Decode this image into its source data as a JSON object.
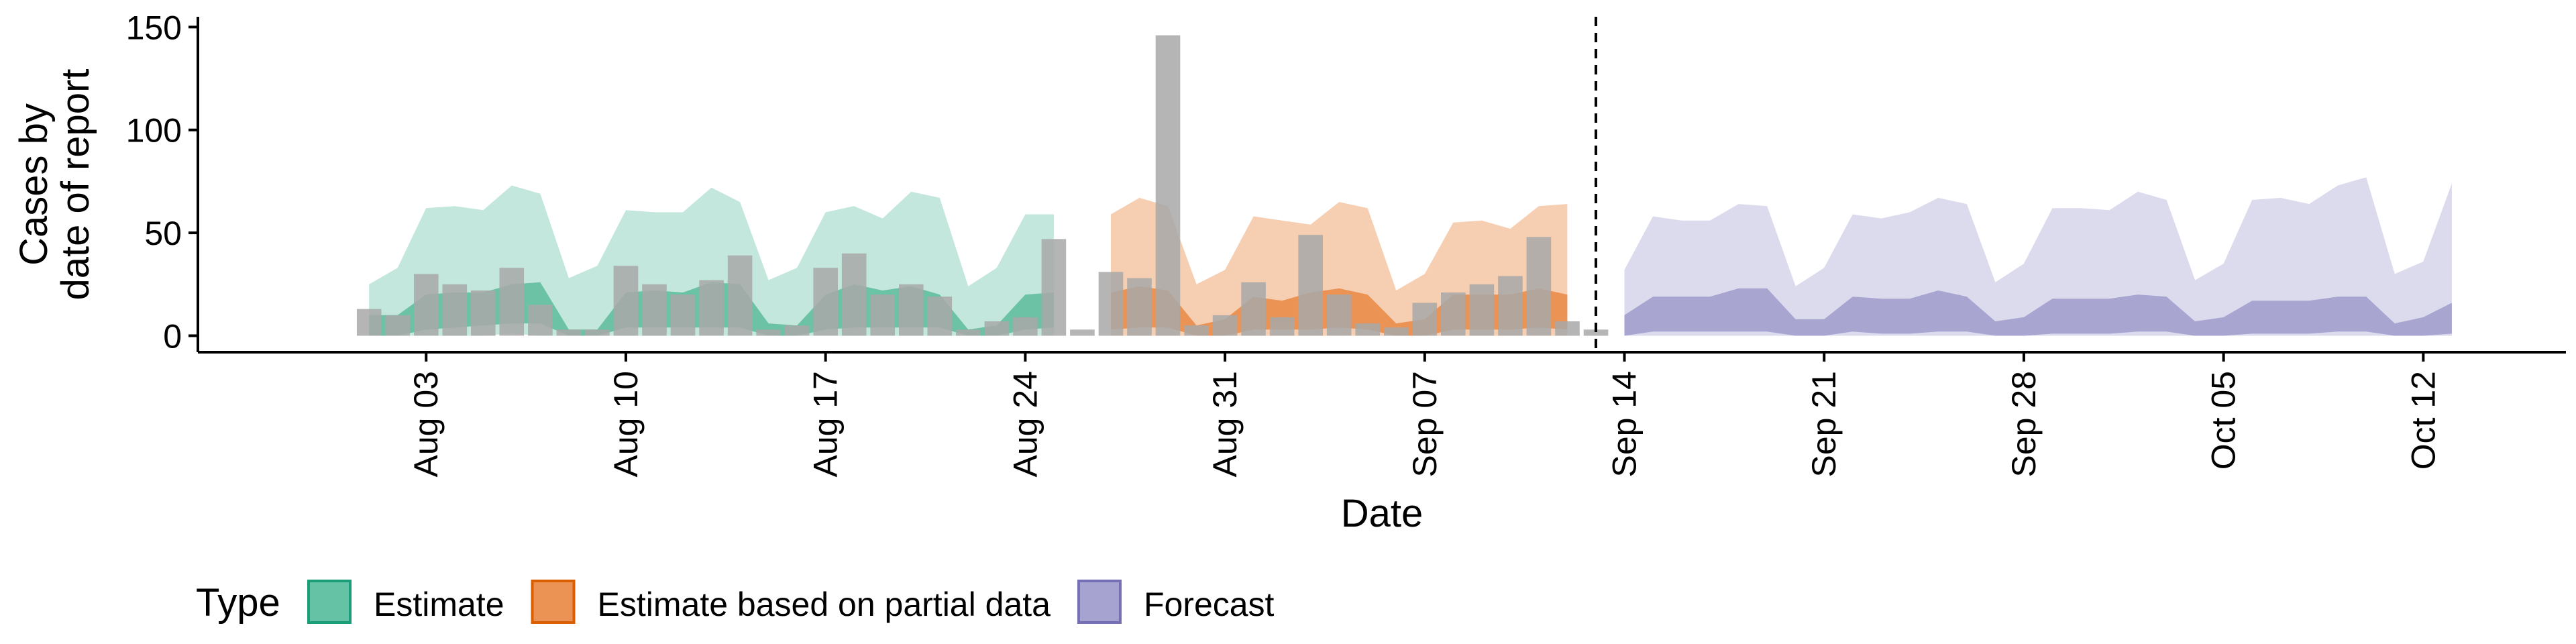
{
  "chart_data": {
    "type": "area",
    "title": "",
    "xlabel": "Date",
    "ylabel": [
      "Cases by",
      "date of report"
    ],
    "ylim": [
      -8,
      155
    ],
    "yticks": [
      0,
      50,
      100,
      150
    ],
    "xlim": [
      "2020-07-26",
      "2020-10-17"
    ],
    "xticks": [
      {
        "date": "2020-08-03",
        "label": "Aug 03"
      },
      {
        "date": "2020-08-10",
        "label": "Aug 10"
      },
      {
        "date": "2020-08-17",
        "label": "Aug 17"
      },
      {
        "date": "2020-08-24",
        "label": "Aug 24"
      },
      {
        "date": "2020-08-31",
        "label": "Aug 31"
      },
      {
        "date": "2020-09-07",
        "label": "Sep 07"
      },
      {
        "date": "2020-09-14",
        "label": "Sep 14"
      },
      {
        "date": "2020-09-21",
        "label": "Sep 21"
      },
      {
        "date": "2020-09-28",
        "label": "Sep 28"
      },
      {
        "date": "2020-10-05",
        "label": "Oct 05"
      },
      {
        "date": "2020-10-12",
        "label": "Oct 12"
      }
    ],
    "forecast_start_line": "2020-09-13",
    "grid": false,
    "legend": {
      "title": "Type",
      "position": "bottom-left",
      "entries": [
        {
          "name": "Estimate",
          "fill": "#66c2a5",
          "stroke": "#1b9e77"
        },
        {
          "name": "Estimate based on partial data",
          "fill": "#eb9355",
          "stroke": "#d95f02"
        },
        {
          "name": "Forecast",
          "fill": "#a6a3d0",
          "stroke": "#7570b3"
        }
      ]
    },
    "colors": {
      "Estimate": {
        "outer": "#c3e7dc",
        "inner": "#6cc2a4"
      },
      "Estimate based on partial data": {
        "outer": "#f6ceb2",
        "inner": "#eb9355"
      },
      "Forecast": {
        "outer": "#dcdbed",
        "inner": "#a8a5d1"
      },
      "reported_bars": "#a8a8a8"
    },
    "reported_cases": {
      "start": "2020-08-01",
      "values": [
        13,
        10,
        30,
        25,
        22,
        33,
        15,
        3,
        3,
        34,
        25,
        20,
        27,
        39,
        3,
        5,
        33,
        40,
        20,
        25,
        19,
        3,
        7,
        9,
        47,
        3,
        31,
        28,
        146,
        5,
        10,
        26,
        9,
        49,
        20,
        6,
        4,
        16,
        21,
        25,
        29,
        48,
        7,
        3
      ]
    },
    "series": [
      {
        "name": "Estimate",
        "start": "2020-08-01",
        "upper": [
          25,
          33,
          62,
          63,
          61,
          73,
          69,
          28,
          34,
          61,
          60,
          60,
          72,
          65,
          27,
          33,
          60,
          63,
          57,
          70,
          67,
          24,
          33,
          59,
          59
        ],
        "inner_upper": [
          10,
          10,
          20,
          21,
          21,
          25,
          26,
          3,
          3,
          21,
          22,
          21,
          26,
          25,
          6,
          5,
          20,
          25,
          22,
          24,
          20,
          3,
          5,
          20,
          21
        ],
        "inner_lower": [
          0,
          0,
          3,
          4,
          5,
          6,
          6,
          0,
          0,
          4,
          4,
          4,
          4,
          4,
          0,
          0,
          3,
          4,
          4,
          4,
          4,
          0,
          0,
          3,
          4
        ],
        "lower": [
          0,
          0,
          0,
          0,
          0,
          1,
          0,
          0,
          0,
          0,
          0,
          0,
          0,
          0,
          0,
          0,
          0,
          0,
          0,
          0,
          0,
          0,
          0,
          0,
          0
        ]
      },
      {
        "name": "Estimate based on partial data",
        "start": "2020-08-27",
        "upper": [
          59,
          67,
          63,
          25,
          32,
          58,
          56,
          54,
          65,
          62,
          22,
          30,
          55,
          56,
          52,
          63,
          64
        ],
        "inner_upper": [
          21,
          24,
          22,
          5,
          8,
          19,
          17,
          21,
          23,
          20,
          6,
          8,
          20,
          20,
          20,
          23,
          20
        ],
        "inner_lower": [
          3,
          4,
          4,
          0,
          0,
          3,
          3,
          3,
          4,
          3,
          0,
          0,
          3,
          3,
          3,
          4,
          3
        ],
        "lower": [
          0,
          0,
          0,
          0,
          0,
          0,
          0,
          0,
          0,
          0,
          0,
          0,
          0,
          0,
          0,
          0,
          0
        ]
      },
      {
        "name": "Forecast",
        "start": "2020-09-14",
        "upper": [
          32,
          58,
          56,
          56,
          64,
          63,
          24,
          33,
          59,
          57,
          60,
          67,
          64,
          26,
          35,
          62,
          62,
          61,
          70,
          66,
          27,
          35,
          66,
          67,
          64,
          73,
          77,
          30,
          36,
          74
        ],
        "inner_upper": [
          10,
          19,
          19,
          19,
          23,
          23,
          8,
          8,
          19,
          18,
          18,
          22,
          19,
          7,
          9,
          18,
          18,
          18,
          20,
          19,
          7,
          9,
          17,
          17,
          17,
          19,
          19,
          6,
          9,
          16
        ],
        "inner_lower": [
          0,
          2,
          2,
          2,
          2,
          2,
          0,
          0,
          2,
          1,
          1,
          2,
          2,
          0,
          0,
          1,
          1,
          1,
          2,
          2,
          0,
          0,
          1,
          1,
          1,
          2,
          2,
          0,
          0,
          1
        ],
        "lower": [
          0,
          0,
          0,
          0,
          0,
          0,
          0,
          0,
          0,
          0,
          0,
          0,
          0,
          0,
          0,
          0,
          0,
          0,
          0,
          0,
          0,
          0,
          0,
          0,
          0,
          0,
          0,
          0,
          0,
          0
        ]
      }
    ]
  }
}
